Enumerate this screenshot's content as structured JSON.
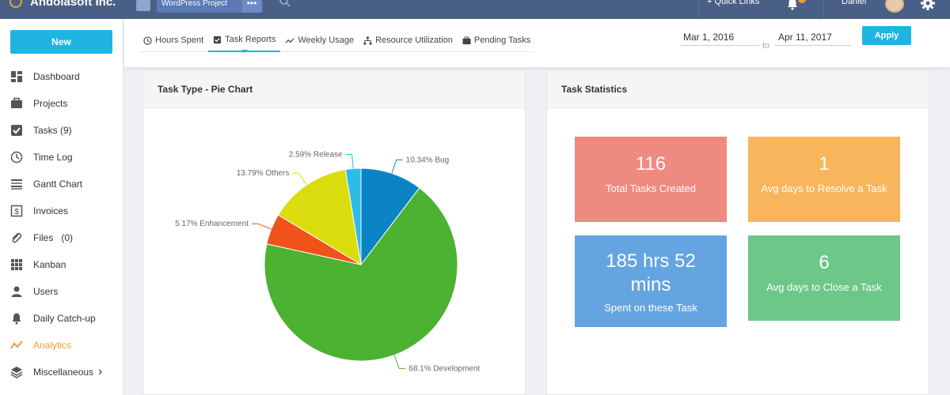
{
  "topbar": {
    "company": "Andolasoft Inc.",
    "project": "WordPress Project",
    "more_dots": "•••",
    "quick_links": "+ Quick Links",
    "user_name": "Daniel"
  },
  "sidebar": {
    "new_label": "New",
    "items": [
      {
        "label": "Dashboard",
        "icon": "dashboard-icon"
      },
      {
        "label": "Projects",
        "icon": "briefcase-icon"
      },
      {
        "label": "Tasks (9)",
        "icon": "checkbox-icon"
      },
      {
        "label": "Time Log",
        "icon": "clock-icon"
      },
      {
        "label": "Gantt Chart",
        "icon": "gantt-icon"
      },
      {
        "label": "Invoices",
        "icon": "dollar-icon"
      },
      {
        "label": "Files   (0)",
        "icon": "paperclip-icon"
      },
      {
        "label": "Kanban",
        "icon": "grid-icon"
      },
      {
        "label": "Users",
        "icon": "user-icon"
      },
      {
        "label": "Daily Catch-up",
        "icon": "bell-icon"
      },
      {
        "label": "Analytics",
        "icon": "analytics-icon",
        "active": true
      },
      {
        "label": "Miscellaneous",
        "icon": "layers-icon",
        "chevron": "›"
      }
    ]
  },
  "tabs": [
    {
      "label": "Hours Spent",
      "icon": "clock-icon"
    },
    {
      "label": "Task Reports",
      "icon": "report-icon",
      "active": true
    },
    {
      "label": "Weekly Usage",
      "icon": "trend-icon"
    },
    {
      "label": "Resource Utilization",
      "icon": "sitemap-icon"
    },
    {
      "label": "Pending Tasks",
      "icon": "briefcase-icon"
    }
  ],
  "date_range": {
    "from": "Mar 1, 2016",
    "to_label": "to",
    "to": "Apr 11, 2017",
    "apply_label": "Apply"
  },
  "pie_panel": {
    "title": "Task Type - Pie Chart"
  },
  "stats_panel": {
    "title": "Task Statistics",
    "cards": [
      {
        "value": "116",
        "caption": "Total Tasks Created",
        "color": "#ef8a80"
      },
      {
        "value": "1",
        "caption": "Avg days to Resolve a Task",
        "color": "#f8b55c"
      },
      {
        "value": "185 hrs 52 mins",
        "caption": "Spent on these Task",
        "color": "#64a4e0"
      },
      {
        "value": "6",
        "caption": "Avg days to Close a Task",
        "color": "#6cc788"
      }
    ]
  },
  "chart_data": {
    "type": "pie",
    "title": "Task Type - Pie Chart",
    "slices": [
      {
        "name": "Bug",
        "value": 10.34,
        "label": "10.34% Bug",
        "color": "#0b84c6"
      },
      {
        "name": "Development",
        "value": 68.1,
        "label": "68.1% Development",
        "color": "#4cb231"
      },
      {
        "name": "Enhancement",
        "value": 5.17,
        "label": "5.17% Enhancement",
        "color": "#f1521a"
      },
      {
        "name": "Others",
        "value": 13.79,
        "label": "13.79% Others",
        "color": "#dbdc0d"
      },
      {
        "name": "Release",
        "value": 2.59,
        "label": "2.59% Release",
        "color": "#2bbde6"
      }
    ]
  },
  "colors": {
    "accent": "#1fb5e0",
    "topbar": "#4a5f86",
    "active_nav": "#f39c35"
  }
}
